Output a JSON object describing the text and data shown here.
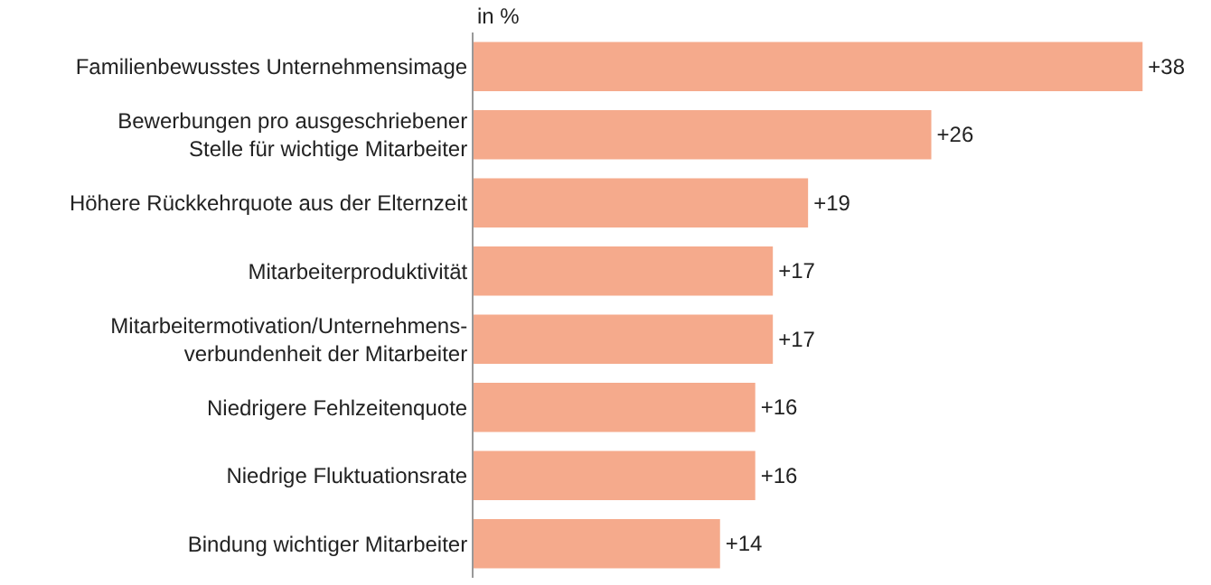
{
  "chart_data": {
    "type": "bar",
    "orientation": "horizontal",
    "xlabel": "in %",
    "categories": [
      "Familienbewusstes Unternehmensimage",
      "Bewerbungen pro ausgeschriebener\nStelle für wichtige Mitarbeiter",
      "Höhere Rückkehrquote aus der Elternzeit",
      "Mitarbeiterproduktivität",
      "Mitarbeitermotivation/Unternehmens-\nverbundenheit der Mitarbeiter",
      "Niedrigere Fehlzeitenquote",
      "Niedrige Fluktuationsrate",
      "Bindung wichtiger Mitarbeiter"
    ],
    "values": [
      38,
      26,
      19,
      17,
      17,
      16,
      16,
      14
    ],
    "value_labels": [
      "+38",
      "+26",
      "+19",
      "+17",
      "+17",
      "+16",
      "+16",
      "+14"
    ],
    "color": "#f5aa8c",
    "tick_labels": "y",
    "grid": false,
    "legend": false
  }
}
